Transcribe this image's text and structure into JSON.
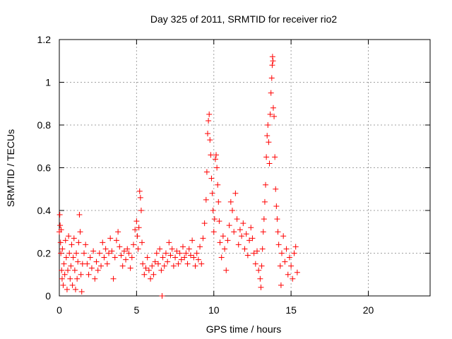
{
  "chart_data": {
    "type": "scatter",
    "title": "Day 325 of 2011, SRMTID for receiver rio2",
    "xlabel": "GPS time / hours",
    "ylabel": "SRMTID / TECUs",
    "xlim": [
      0,
      24
    ],
    "ylim": [
      0,
      1.2
    ],
    "x_ticks": [
      0,
      5,
      10,
      15,
      20
    ],
    "x_tick_labels": [
      "0",
      "5",
      "10",
      "15",
      "20"
    ],
    "y_ticks": [
      0,
      0.2,
      0.4,
      0.6,
      0.8,
      1.0,
      1.2
    ],
    "y_tick_labels": [
      "0",
      "0.2",
      "0.4",
      "0.6",
      "0.8",
      "1",
      "1.2"
    ],
    "grid": true,
    "marker": "+",
    "series": [
      {
        "name": "rio2",
        "color": "#ff0000",
        "points": [
          [
            0.0,
            0.3
          ],
          [
            0.03,
            0.38
          ],
          [
            0.05,
            0.33
          ],
          [
            0.08,
            0.25
          ],
          [
            0.1,
            0.2
          ],
          [
            0.12,
            0.31
          ],
          [
            0.15,
            0.12
          ],
          [
            0.18,
            0.08
          ],
          [
            0.2,
            0.22
          ],
          [
            0.25,
            0.05
          ],
          [
            0.3,
            0.15
          ],
          [
            0.35,
            0.1
          ],
          [
            0.4,
            0.26
          ],
          [
            0.45,
            0.18
          ],
          [
            0.5,
            0.03
          ],
          [
            0.55,
            0.12
          ],
          [
            0.6,
            0.28
          ],
          [
            0.65,
            0.2
          ],
          [
            0.7,
            0.08
          ],
          [
            0.75,
            0.14
          ],
          [
            0.8,
            0.24
          ],
          [
            0.85,
            0.05
          ],
          [
            0.9,
            0.18
          ],
          [
            0.95,
            0.27
          ],
          [
            1.0,
            0.12
          ],
          [
            1.05,
            0.03
          ],
          [
            1.1,
            0.2
          ],
          [
            1.15,
            0.08
          ],
          [
            1.2,
            0.16
          ],
          [
            1.25,
            0.25
          ],
          [
            1.3,
            0.38
          ],
          [
            1.35,
            0.3
          ],
          [
            1.4,
            0.1
          ],
          [
            1.45,
            0.02
          ],
          [
            1.5,
            0.15
          ],
          [
            1.6,
            0.2
          ],
          [
            1.7,
            0.24
          ],
          [
            1.8,
            0.15
          ],
          [
            1.9,
            0.1
          ],
          [
            2.0,
            0.18
          ],
          [
            2.1,
            0.13
          ],
          [
            2.2,
            0.21
          ],
          [
            2.3,
            0.08
          ],
          [
            2.4,
            0.16
          ],
          [
            2.5,
            0.12
          ],
          [
            2.6,
            0.2
          ],
          [
            2.7,
            0.14
          ],
          [
            2.8,
            0.25
          ],
          [
            2.9,
            0.18
          ],
          [
            3.0,
            0.22
          ],
          [
            3.1,
            0.15
          ],
          [
            3.2,
            0.2
          ],
          [
            3.3,
            0.27
          ],
          [
            3.4,
            0.21
          ],
          [
            3.5,
            0.08
          ],
          [
            3.6,
            0.18
          ],
          [
            3.7,
            0.26
          ],
          [
            3.8,
            0.3
          ],
          [
            3.9,
            0.23
          ],
          [
            4.0,
            0.19
          ],
          [
            4.1,
            0.14
          ],
          [
            4.2,
            0.21
          ],
          [
            4.3,
            0.17
          ],
          [
            4.4,
            0.22
          ],
          [
            4.5,
            0.2
          ],
          [
            4.6,
            0.13
          ],
          [
            4.7,
            0.18
          ],
          [
            4.8,
            0.24
          ],
          [
            4.9,
            0.31
          ],
          [
            5.0,
            0.35
          ],
          [
            5.05,
            0.28
          ],
          [
            5.1,
            0.22
          ],
          [
            5.15,
            0.32
          ],
          [
            5.2,
            0.49
          ],
          [
            5.25,
            0.46
          ],
          [
            5.3,
            0.4
          ],
          [
            5.35,
            0.25
          ],
          [
            5.4,
            0.15
          ],
          [
            5.5,
            0.1
          ],
          [
            5.6,
            0.13
          ],
          [
            5.7,
            0.18
          ],
          [
            5.8,
            0.12
          ],
          [
            5.9,
            0.08
          ],
          [
            6.0,
            0.14
          ],
          [
            6.1,
            0.1
          ],
          [
            6.2,
            0.16
          ],
          [
            6.3,
            0.2
          ],
          [
            6.4,
            0.15
          ],
          [
            6.5,
            0.22
          ],
          [
            6.6,
            0.12
          ],
          [
            6.65,
            0.0
          ],
          [
            6.7,
            0.18
          ],
          [
            6.8,
            0.14
          ],
          [
            6.9,
            0.2
          ],
          [
            7.0,
            0.16
          ],
          [
            7.1,
            0.25
          ],
          [
            7.2,
            0.19
          ],
          [
            7.3,
            0.22
          ],
          [
            7.4,
            0.14
          ],
          [
            7.5,
            0.18
          ],
          [
            7.6,
            0.21
          ],
          [
            7.7,
            0.15
          ],
          [
            7.8,
            0.2
          ],
          [
            7.9,
            0.17
          ],
          [
            8.0,
            0.23
          ],
          [
            8.1,
            0.18
          ],
          [
            8.2,
            0.2
          ],
          [
            8.3,
            0.15
          ],
          [
            8.4,
            0.22
          ],
          [
            8.5,
            0.19
          ],
          [
            8.6,
            0.26
          ],
          [
            8.7,
            0.18
          ],
          [
            8.8,
            0.14
          ],
          [
            8.9,
            0.2
          ],
          [
            9.0,
            0.17
          ],
          [
            9.1,
            0.23
          ],
          [
            9.2,
            0.15
          ],
          [
            9.3,
            0.27
          ],
          [
            9.4,
            0.34
          ],
          [
            9.5,
            0.45
          ],
          [
            9.55,
            0.58
          ],
          [
            9.6,
            0.76
          ],
          [
            9.65,
            0.82
          ],
          [
            9.7,
            0.85
          ],
          [
            9.75,
            0.73
          ],
          [
            9.8,
            0.66
          ],
          [
            9.85,
            0.55
          ],
          [
            9.9,
            0.48
          ],
          [
            9.95,
            0.4
          ],
          [
            10.0,
            0.3
          ],
          [
            10.05,
            0.36
          ],
          [
            10.1,
            0.64
          ],
          [
            10.15,
            0.66
          ],
          [
            10.2,
            0.6
          ],
          [
            10.25,
            0.52
          ],
          [
            10.3,
            0.44
          ],
          [
            10.35,
            0.35
          ],
          [
            10.4,
            0.25
          ],
          [
            10.5,
            0.18
          ],
          [
            10.6,
            0.28
          ],
          [
            10.7,
            0.22
          ],
          [
            10.8,
            0.12
          ],
          [
            10.9,
            0.26
          ],
          [
            11.0,
            0.33
          ],
          [
            11.1,
            0.44
          ],
          [
            11.2,
            0.4
          ],
          [
            11.3,
            0.3
          ],
          [
            11.4,
            0.48
          ],
          [
            11.5,
            0.36
          ],
          [
            11.6,
            0.24
          ],
          [
            11.7,
            0.31
          ],
          [
            11.8,
            0.28
          ],
          [
            11.9,
            0.34
          ],
          [
            12.0,
            0.22
          ],
          [
            12.1,
            0.29
          ],
          [
            12.2,
            0.19
          ],
          [
            12.3,
            0.26
          ],
          [
            12.4,
            0.32
          ],
          [
            12.5,
            0.27
          ],
          [
            12.6,
            0.2
          ],
          [
            12.7,
            0.15
          ],
          [
            12.8,
            0.21
          ],
          [
            12.9,
            0.12
          ],
          [
            13.0,
            0.08
          ],
          [
            13.05,
            0.04
          ],
          [
            13.1,
            0.14
          ],
          [
            13.15,
            0.22
          ],
          [
            13.2,
            0.3
          ],
          [
            13.25,
            0.36
          ],
          [
            13.3,
            0.44
          ],
          [
            13.35,
            0.52
          ],
          [
            13.4,
            0.65
          ],
          [
            13.45,
            0.75
          ],
          [
            13.5,
            0.8
          ],
          [
            13.55,
            0.72
          ],
          [
            13.6,
            0.62
          ],
          [
            13.65,
            0.85
          ],
          [
            13.7,
            0.95
          ],
          [
            13.75,
            1.02
          ],
          [
            13.78,
            1.08
          ],
          [
            13.8,
            1.12
          ],
          [
            13.83,
            1.1
          ],
          [
            13.85,
            0.88
          ],
          [
            13.9,
            0.84
          ],
          [
            13.95,
            0.65
          ],
          [
            14.0,
            0.5
          ],
          [
            14.05,
            0.42
          ],
          [
            14.1,
            0.36
          ],
          [
            14.15,
            0.3
          ],
          [
            14.2,
            0.24
          ],
          [
            14.3,
            0.14
          ],
          [
            14.35,
            0.05
          ],
          [
            14.4,
            0.2
          ],
          [
            14.5,
            0.28
          ],
          [
            14.6,
            0.16
          ],
          [
            14.7,
            0.22
          ],
          [
            14.8,
            0.1
          ],
          [
            14.9,
            0.18
          ],
          [
            15.0,
            0.14
          ],
          [
            15.1,
            0.08
          ],
          [
            15.2,
            0.2
          ],
          [
            15.3,
            0.23
          ],
          [
            15.4,
            0.11
          ]
        ]
      }
    ]
  }
}
